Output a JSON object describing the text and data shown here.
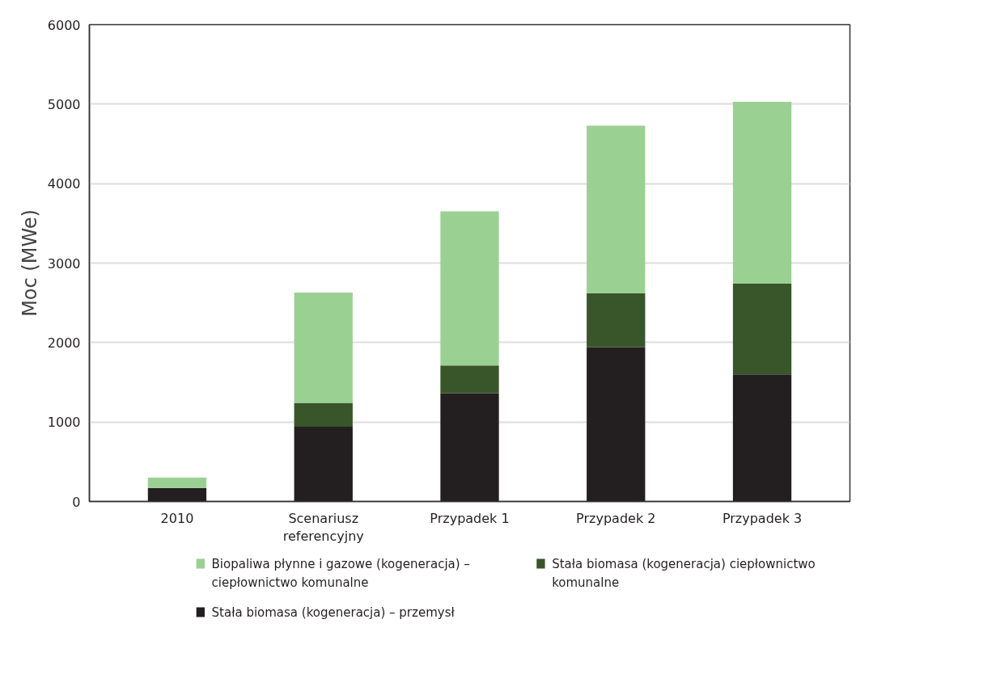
{
  "chart_data": {
    "type": "bar",
    "stacked": true,
    "ylabel": "Moc (MWe)",
    "categories": [
      "2010",
      "Scenariusz referencyjny",
      "Przypadek 1",
      "Przypadek 2",
      "Przypadek 3"
    ],
    "series": [
      {
        "name": "Stała biomasa (kogeneracja) – przemysł",
        "color": "#231f20",
        "values": [
          170,
          940,
          1360,
          1940,
          1600
        ]
      },
      {
        "name": "Stała biomasa (kogeneracja) ciepłownictwo komunalne",
        "color": "#38562a",
        "values": [
          0,
          300,
          350,
          680,
          1140
        ]
      },
      {
        "name": "Biopaliwa płynne i gazowe (kogeneracja) – ciepłownictwo komunalne",
        "color": "#9bd093",
        "values": [
          130,
          1390,
          1940,
          2110,
          2290
        ]
      }
    ],
    "ylim": [
      0,
      6000
    ],
    "yticks": [
      0,
      1000,
      2000,
      3000,
      4000,
      5000,
      6000
    ],
    "grid": "y",
    "legend": "bottom"
  }
}
